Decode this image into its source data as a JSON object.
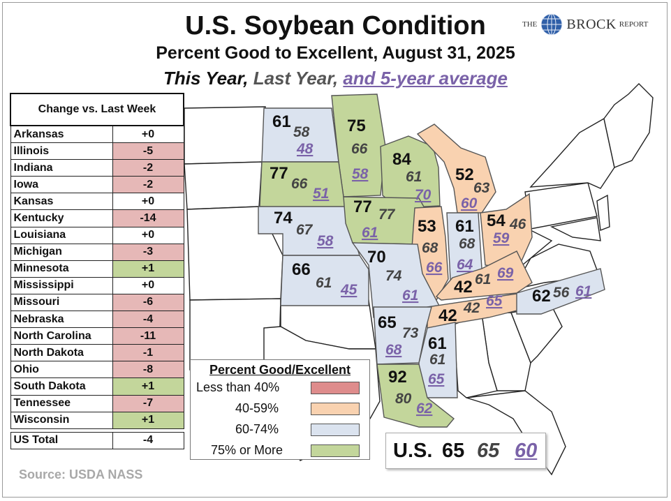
{
  "title": "U.S. Soybean Condition",
  "subtitle": "Percent Good to Excellent, August 31, 2025",
  "subtitle2": {
    "this_year": "This Year,",
    "last_year": "Last Year,",
    "avg": "and 5-year average"
  },
  "logo": {
    "the": "THE",
    "brock": "BROCK",
    "report": "REPORT"
  },
  "colors": {
    "lt40": "#de8c8c",
    "c40_59": "#f9d2b0",
    "c60_74": "#dbe3ef",
    "c75": "#c3d69b",
    "avg_text": "#7a62a8",
    "last_text": "#444444",
    "border": "#555555"
  },
  "change_table": {
    "header": "Change vs. Last Week",
    "rows": [
      {
        "state": "Arkansas",
        "change": "+0",
        "color": "#ffffff"
      },
      {
        "state": "Illinois",
        "change": "-5",
        "color": "#e6b8b7"
      },
      {
        "state": "Indiana",
        "change": "-2",
        "color": "#e6b8b7"
      },
      {
        "state": "Iowa",
        "change": "-2",
        "color": "#e6b8b7"
      },
      {
        "state": "Kansas",
        "change": "+0",
        "color": "#ffffff"
      },
      {
        "state": "Kentucky",
        "change": "-14",
        "color": "#e6b8b7"
      },
      {
        "state": "Louisiana",
        "change": "+0",
        "color": "#ffffff"
      },
      {
        "state": "Michigan",
        "change": "-3",
        "color": "#e6b8b7"
      },
      {
        "state": "Minnesota",
        "change": "+1",
        "color": "#c3d69b"
      },
      {
        "state": "Mississippi",
        "change": "+0",
        "color": "#ffffff"
      },
      {
        "state": "Missouri",
        "change": "-6",
        "color": "#e6b8b7"
      },
      {
        "state": "Nebraska",
        "change": "-4",
        "color": "#e6b8b7"
      },
      {
        "state": "North Carolina",
        "change": "-11",
        "color": "#e6b8b7"
      },
      {
        "state": "North Dakota",
        "change": "-1",
        "color": "#e6b8b7"
      },
      {
        "state": "Ohio",
        "change": "-8",
        "color": "#e6b8b7"
      },
      {
        "state": "South Dakota",
        "change": "+1",
        "color": "#c3d69b"
      },
      {
        "state": "Tennessee",
        "change": "-7",
        "color": "#e6b8b7"
      },
      {
        "state": "Wisconsin",
        "change": "+1",
        "color": "#c3d69b"
      }
    ],
    "total": {
      "state": "US Total",
      "change": "-4"
    }
  },
  "chart_data": {
    "type": "map",
    "series_fields": [
      "this_year",
      "last_year",
      "five_year_avg"
    ],
    "states": [
      {
        "id": "nd",
        "this_year": 61,
        "last_year": 58,
        "five_year_avg": 48,
        "category": "60-74%"
      },
      {
        "id": "mn",
        "this_year": 75,
        "last_year": 66,
        "five_year_avg": 58,
        "category": "75% or More"
      },
      {
        "id": "sd",
        "this_year": 77,
        "last_year": 66,
        "five_year_avg": 51,
        "category": "75% or More"
      },
      {
        "id": "wi",
        "this_year": 84,
        "last_year": 61,
        "five_year_avg": 70,
        "category": "75% or More"
      },
      {
        "id": "mi",
        "this_year": 52,
        "last_year": 63,
        "five_year_avg": 60,
        "category": "40-59%"
      },
      {
        "id": "ne",
        "this_year": 74,
        "last_year": 67,
        "five_year_avg": 58,
        "category": "60-74%"
      },
      {
        "id": "ia",
        "this_year": 77,
        "last_year": 77,
        "five_year_avg": 61,
        "category": "75% or More"
      },
      {
        "id": "il",
        "this_year": 53,
        "last_year": 68,
        "five_year_avg": 66,
        "category": "40-59%"
      },
      {
        "id": "in",
        "this_year": 61,
        "last_year": 68,
        "five_year_avg": 64,
        "category": "60-74%"
      },
      {
        "id": "oh",
        "this_year": 54,
        "last_year": 46,
        "five_year_avg": 59,
        "category": "40-59%"
      },
      {
        "id": "ks",
        "this_year": 66,
        "last_year": 61,
        "five_year_avg": 45,
        "category": "60-74%"
      },
      {
        "id": "mo",
        "this_year": 70,
        "last_year": 74,
        "five_year_avg": 61,
        "category": "60-74%"
      },
      {
        "id": "ky",
        "this_year": 42,
        "last_year": 61,
        "five_year_avg": 69,
        "category": "40-59%"
      },
      {
        "id": "tn",
        "this_year": 42,
        "last_year": 42,
        "five_year_avg": 65,
        "category": "40-59%"
      },
      {
        "id": "nc",
        "this_year": 62,
        "last_year": 56,
        "five_year_avg": 61,
        "category": "60-74%"
      },
      {
        "id": "ar",
        "this_year": 65,
        "last_year": 73,
        "five_year_avg": 68,
        "category": "60-74%"
      },
      {
        "id": "ms",
        "this_year": 61,
        "last_year": 61,
        "five_year_avg": 65,
        "category": "60-74%"
      },
      {
        "id": "la",
        "this_year": 92,
        "last_year": 80,
        "five_year_avg": 62,
        "category": "75% or More"
      }
    ],
    "us": {
      "label": "U.S.",
      "this_year": 65,
      "last_year": 65,
      "five_year_avg": 60
    }
  },
  "legend": {
    "title": "Percent Good/Excellent",
    "items": [
      {
        "label": "Less than 40%",
        "color": "#de8c8c"
      },
      {
        "label": "40-59%",
        "color": "#f9d2b0"
      },
      {
        "label": "60-74%",
        "color": "#dbe3ef"
      },
      {
        "label": "75% or More",
        "color": "#c3d69b"
      }
    ]
  },
  "source": "Source: USDA NASS"
}
